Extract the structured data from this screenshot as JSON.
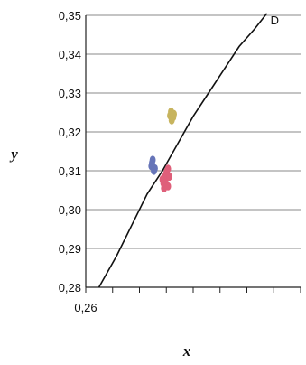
{
  "chart_data": {
    "type": "scatter",
    "title": "",
    "xlabel": "x",
    "ylabel": "y",
    "xlim": [
      0.26,
      0.33
    ],
    "ylim": [
      0.28,
      0.35
    ],
    "grid": true,
    "y_ticks": [
      "0,35",
      "0,34",
      "0,33",
      "0,32",
      "0,31",
      "0,30",
      "0,29",
      "0,28"
    ],
    "x_tick_labels": [
      "0,26"
    ],
    "curve": {
      "end_label": "D",
      "color": "#111111",
      "points": [
        [
          0.2643,
          0.28
        ],
        [
          0.27,
          0.288
        ],
        [
          0.275,
          0.296
        ],
        [
          0.28,
          0.304
        ],
        [
          0.285,
          0.31
        ],
        [
          0.29,
          0.317
        ],
        [
          0.295,
          0.324
        ],
        [
          0.3,
          0.33
        ],
        [
          0.305,
          0.336
        ],
        [
          0.31,
          0.342
        ],
        [
          0.315,
          0.3465
        ],
        [
          0.319,
          0.3505
        ]
      ]
    },
    "series": [
      {
        "color": "#6674b8",
        "points": [
          [
            0.2818,
            0.3128
          ],
          [
            0.2814,
            0.3112
          ],
          [
            0.2822,
            0.31
          ],
          [
            0.2816,
            0.312
          ],
          [
            0.2825,
            0.3106
          ]
        ]
      },
      {
        "color": "#c7b45e",
        "points": [
          [
            0.2878,
            0.3252
          ],
          [
            0.2885,
            0.3238
          ],
          [
            0.288,
            0.323
          ],
          [
            0.2887,
            0.3246
          ],
          [
            0.2875,
            0.3242
          ]
        ]
      },
      {
        "color": "#df5f7a",
        "points": [
          [
            0.2855,
            0.3055
          ],
          [
            0.286,
            0.307
          ],
          [
            0.2858,
            0.3085
          ],
          [
            0.2864,
            0.3098
          ],
          [
            0.2868,
            0.3105
          ],
          [
            0.2862,
            0.3092
          ],
          [
            0.285,
            0.3078
          ],
          [
            0.2868,
            0.306
          ],
          [
            0.2872,
            0.3085
          ],
          [
            0.2853,
            0.3068
          ]
        ]
      }
    ]
  }
}
